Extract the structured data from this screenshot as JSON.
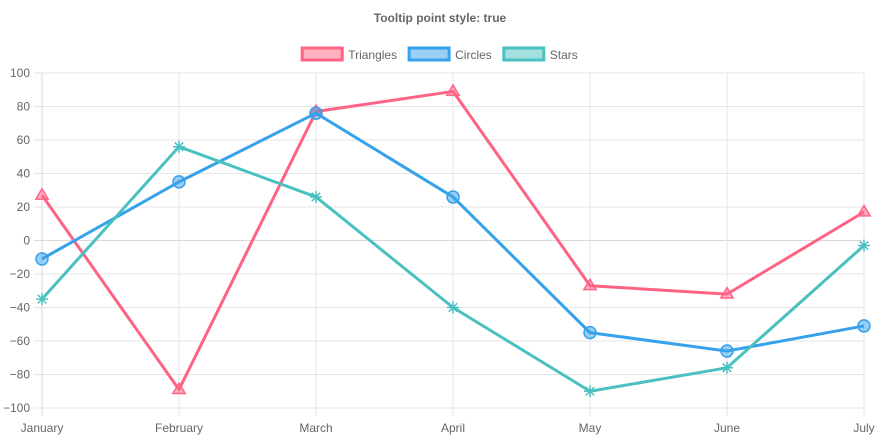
{
  "chart_data": {
    "type": "line",
    "title": "Tooltip point style: true",
    "categories": [
      "January",
      "February",
      "March",
      "April",
      "May",
      "June",
      "July"
    ],
    "ylim": [
      -100,
      100
    ],
    "y_ticks": [
      "100",
      "80",
      "60",
      "40",
      "20",
      "0",
      "−20",
      "−40",
      "−60",
      "−80",
      "−100"
    ],
    "grid": true,
    "legend_position": "top",
    "series": [
      {
        "name": "Triangles",
        "marker": "triangle",
        "color": "#ff6384",
        "fill": "rgba(255,99,132,0.5)",
        "values": [
          27,
          -89,
          77,
          89,
          -27,
          -32,
          17
        ]
      },
      {
        "name": "Circles",
        "marker": "circle",
        "color": "#36a2eb",
        "fill": "rgba(54,162,235,0.5)",
        "values": [
          -11,
          35,
          76,
          26,
          -55,
          -66,
          -51
        ]
      },
      {
        "name": "Stars",
        "marker": "star",
        "color": "#4bc0c0",
        "fill": "rgba(75,192,192,0.5)",
        "values": [
          -35,
          56,
          26,
          -40,
          -90,
          -76,
          -3
        ]
      }
    ]
  }
}
